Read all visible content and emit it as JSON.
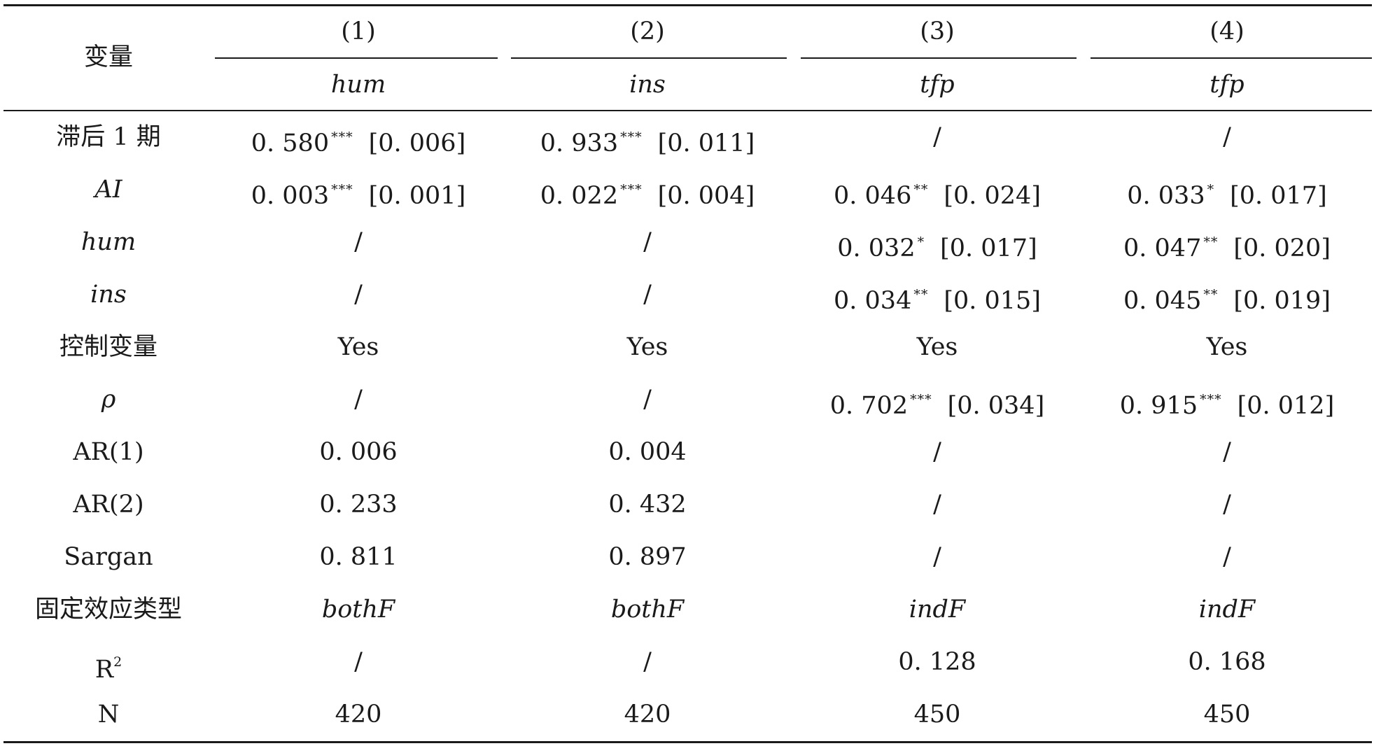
{
  "header": {
    "var_label": "变量",
    "cols": [
      {
        "num": "(1)",
        "dep": "hum"
      },
      {
        "num": "(2)",
        "dep": "ins"
      },
      {
        "num": "(3)",
        "dep": "tfp"
      },
      {
        "num": "(4)",
        "dep": "tfp"
      }
    ]
  },
  "rows": [
    {
      "label": "滞后 1 期",
      "italic": false,
      "cells": [
        {
          "v": "0. 580",
          "s": "***",
          "se": "[0. 006]"
        },
        {
          "v": "0. 933",
          "s": "***",
          "se": "[0. 011]"
        },
        {
          "v": "/"
        },
        {
          "v": "/"
        }
      ]
    },
    {
      "label": "AI",
      "italic": true,
      "cells": [
        {
          "v": "0. 003",
          "s": "***",
          "se": "[0. 001]"
        },
        {
          "v": "0. 022",
          "s": "***",
          "se": "[0. 004]"
        },
        {
          "v": "0. 046",
          "s": "**",
          "se": "[0. 024]"
        },
        {
          "v": "0. 033",
          "s": "*",
          "se": "[0. 017]"
        }
      ]
    },
    {
      "label": "hum",
      "italic": true,
      "cells": [
        {
          "v": "/"
        },
        {
          "v": "/"
        },
        {
          "v": "0. 032",
          "s": "*",
          "se": "[0. 017]"
        },
        {
          "v": "0. 047",
          "s": "**",
          "se": "[0. 020]"
        }
      ]
    },
    {
      "label": "ins",
      "italic": true,
      "cells": [
        {
          "v": "/"
        },
        {
          "v": "/"
        },
        {
          "v": "0. 034",
          "s": "**",
          "se": "[0. 015]"
        },
        {
          "v": "0. 045",
          "s": "**",
          "se": "[0. 019]"
        }
      ]
    },
    {
      "label": "控制变量",
      "italic": false,
      "cells": [
        {
          "v": "Yes"
        },
        {
          "v": "Yes"
        },
        {
          "v": "Yes"
        },
        {
          "v": "Yes"
        }
      ]
    },
    {
      "label": "ρ",
      "italic": true,
      "cells": [
        {
          "v": "/"
        },
        {
          "v": "/"
        },
        {
          "v": "0. 702",
          "s": "***",
          "se": "[0. 034]"
        },
        {
          "v": "0. 915",
          "s": "***",
          "se": "[0. 012]"
        }
      ]
    },
    {
      "label": "AR(1)",
      "italic": false,
      "cells": [
        {
          "v": "0. 006"
        },
        {
          "v": "0. 004"
        },
        {
          "v": "/"
        },
        {
          "v": "/"
        }
      ]
    },
    {
      "label": "AR(2)",
      "italic": false,
      "cells": [
        {
          "v": "0. 233"
        },
        {
          "v": "0. 432"
        },
        {
          "v": "/"
        },
        {
          "v": "/"
        }
      ]
    },
    {
      "label": "Sargan",
      "italic": false,
      "cells": [
        {
          "v": "0. 811"
        },
        {
          "v": "0. 897"
        },
        {
          "v": "/"
        },
        {
          "v": "/"
        }
      ]
    },
    {
      "label": "固定效应类型",
      "italic": false,
      "cells": [
        {
          "v": "bothF",
          "italic": true
        },
        {
          "v": "bothF",
          "italic": true
        },
        {
          "v": "indF",
          "italic": true
        },
        {
          "v": "indF",
          "italic": true
        }
      ]
    },
    {
      "label": "R",
      "label_sup": "2",
      "italic": false,
      "cells": [
        {
          "v": "/"
        },
        {
          "v": "/"
        },
        {
          "v": "0. 128"
        },
        {
          "v": "0. 168"
        }
      ]
    },
    {
      "label": "N",
      "italic": false,
      "cells": [
        {
          "v": "420"
        },
        {
          "v": "420"
        },
        {
          "v": "450"
        },
        {
          "v": "450"
        }
      ]
    }
  ]
}
